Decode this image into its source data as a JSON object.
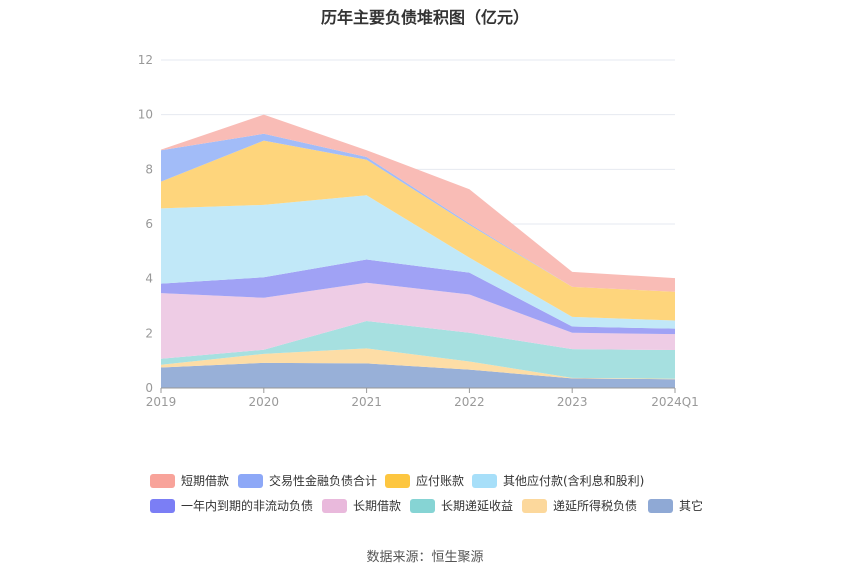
{
  "title": "历年主要负债堆积图（亿元）",
  "source": "数据来源：恒生聚源",
  "chart_data": {
    "type": "area",
    "stacked": true,
    "title": "历年主要负债堆积图（亿元）",
    "categories": [
      "2019",
      "2020",
      "2021",
      "2022",
      "2023",
      "2024Q1"
    ],
    "ylim": [
      0,
      12
    ],
    "yticks": [
      0,
      2,
      4,
      6,
      8,
      10,
      12
    ],
    "grid": true,
    "legend_position": "bottom",
    "series": [
      {
        "name": "其它",
        "color": "#98b0d8",
        "values": [
          0.75,
          0.92,
          0.9,
          0.67,
          0.35,
          0.32
        ]
      },
      {
        "name": "递延所得税负债",
        "color": "#fddda6",
        "values": [
          0.1,
          0.33,
          0.55,
          0.3,
          0.02,
          0.02
        ]
      },
      {
        "name": "长期递延收益",
        "color": "#a6e0e0",
        "values": [
          0.22,
          0.15,
          1.0,
          1.05,
          1.05,
          1.05
        ]
      },
      {
        "name": "长期借款",
        "color": "#eecce5",
        "values": [
          2.4,
          1.9,
          1.4,
          1.4,
          0.6,
          0.58
        ]
      },
      {
        "name": "一年内到期的非流动负债",
        "color": "#a0a2f5",
        "values": [
          0.35,
          0.75,
          0.85,
          0.8,
          0.23,
          0.2
        ]
      },
      {
        "name": "其他应付款(含利息和股利)",
        "color": "#c1e8f8",
        "values": [
          2.75,
          2.65,
          2.35,
          0.55,
          0.35,
          0.3
        ]
      },
      {
        "name": "应付账款",
        "color": "#fed57c",
        "values": [
          0.98,
          2.35,
          1.3,
          1.2,
          1.1,
          1.05
        ]
      },
      {
        "name": "交易性金融负债合计",
        "color": "#a2bcf8",
        "values": [
          1.15,
          0.25,
          0.1,
          0.05,
          0.0,
          0.0
        ]
      },
      {
        "name": "短期借款",
        "color": "#f9bcb6",
        "values": [
          0.02,
          0.7,
          0.25,
          1.25,
          0.55,
          0.5
        ]
      }
    ]
  },
  "legend": [
    {
      "label": "短期借款",
      "color": "#f8a39a"
    },
    {
      "label": "交易性金融负债合计",
      "color": "#8da8f7"
    },
    {
      "label": "应付账款",
      "color": "#fdc640"
    },
    {
      "label": "其他应付款(含利息和股利)",
      "color": "#a7dff9"
    },
    {
      "label": "一年内到期的非流动负债",
      "color": "#7b7ef5"
    },
    {
      "label": "长期借款",
      "color": "#e9b9dc"
    },
    {
      "label": "长期递延收益",
      "color": "#86d4d4"
    },
    {
      "label": "递延所得税负债",
      "color": "#fcd89c"
    },
    {
      "label": "其它",
      "color": "#8fa9d5"
    }
  ]
}
